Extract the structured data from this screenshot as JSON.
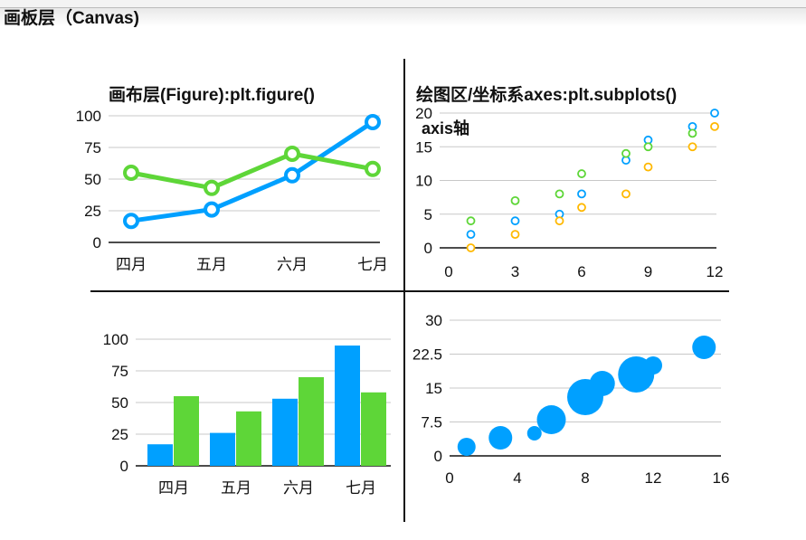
{
  "canvas_title": "画板层（Canvas)",
  "figure_title": "画布层(Figure):plt.figure()",
  "axes_title": "绘图区/坐标系axes:plt.subplots()",
  "axis_label": "axis轴",
  "colors": {
    "blue": "#00A0FF",
    "green": "#5ED638",
    "orange": "#FFB800",
    "grid": "#c8c8c8"
  },
  "chart_data": [
    {
      "type": "line",
      "categories": [
        "四月",
        "五月",
        "六月",
        "七月"
      ],
      "series": [
        {
          "name": "blue",
          "values": [
            17,
            26,
            53,
            95
          ]
        },
        {
          "name": "green",
          "values": [
            55,
            43,
            70,
            58
          ]
        }
      ],
      "yticks": [
        "0",
        "25",
        "50",
        "75",
        "100"
      ],
      "ylim": [
        0,
        100
      ]
    },
    {
      "type": "scatter",
      "xticks": [
        "0",
        "3",
        "6",
        "9",
        "12"
      ],
      "yticks": [
        "0",
        "5",
        "10",
        "15",
        "20"
      ],
      "xlim": [
        0,
        12
      ],
      "ylim": [
        0,
        20
      ],
      "series": [
        {
          "name": "blue",
          "x": [
            1,
            3,
            5,
            6,
            8,
            9,
            11,
            12
          ],
          "y": [
            2,
            4,
            5,
            8,
            13,
            16,
            18,
            20
          ]
        },
        {
          "name": "green",
          "x": [
            1,
            3,
            5,
            6,
            8,
            9,
            11
          ],
          "y": [
            4,
            7,
            8,
            11,
            14,
            15,
            17
          ]
        },
        {
          "name": "orange",
          "x": [
            1,
            3,
            5,
            6,
            8,
            9,
            11,
            12
          ],
          "y": [
            0,
            2,
            4,
            6,
            8,
            12,
            15,
            18
          ]
        }
      ]
    },
    {
      "type": "bar",
      "categories": [
        "四月",
        "五月",
        "六月",
        "七月"
      ],
      "series": [
        {
          "name": "blue",
          "values": [
            17,
            26,
            53,
            95
          ]
        },
        {
          "name": "green",
          "values": [
            55,
            43,
            70,
            58
          ]
        }
      ],
      "yticks": [
        "0",
        "25",
        "50",
        "75",
        "100"
      ],
      "ylim": [
        0,
        100
      ]
    },
    {
      "type": "scatter",
      "subtype": "bubble",
      "xticks": [
        "0",
        "4",
        "8",
        "12",
        "16"
      ],
      "yticks": [
        "0",
        "7.5",
        "15",
        "22.5",
        "30"
      ],
      "xlim": [
        0,
        16
      ],
      "ylim": [
        0,
        30
      ],
      "x": [
        1,
        3,
        5,
        6,
        8,
        9,
        11,
        12,
        15
      ],
      "y": [
        2,
        4,
        5,
        8,
        13,
        16,
        18,
        20,
        24
      ],
      "size": [
        10,
        13,
        8,
        16,
        20,
        14,
        20,
        10,
        13
      ]
    }
  ]
}
